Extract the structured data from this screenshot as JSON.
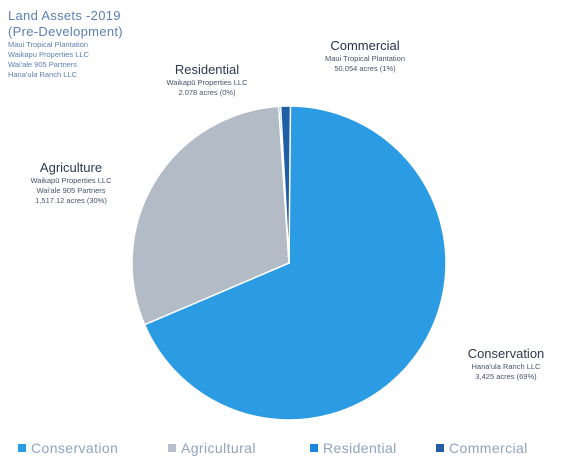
{
  "title_block": {
    "title_line_1": "Land Assets -2019",
    "title_line_2": "(Pre-Development)",
    "owners": [
      "Maui Tropical Plantation",
      "Waikapu Properties LLC",
      "Wai'ale 905 Partners",
      "Hana'ula Ranch LLC"
    ]
  },
  "labels": {
    "commercial": {
      "name": "Commercial",
      "owners": [
        "Maui Tropical Plantation"
      ],
      "acres": "50.054 acres (1%)"
    },
    "residential": {
      "name": "Residential",
      "owners": [
        "Waikapū Properties LLC"
      ],
      "acres": "2.078 acres (0%)"
    },
    "agriculture": {
      "name": "Agriculture",
      "owners": [
        "Waikapū Properties LLC",
        "Wai'ale 905 Partners"
      ],
      "acres": "1,517.12 acres (30%)"
    },
    "conservation": {
      "name": "Conservation",
      "owners": [
        "Hana'ula Ranch LLC"
      ],
      "acres": "3,425 acres (69%)"
    }
  },
  "legend": [
    {
      "label": "Conservation",
      "color": "#2b9be3"
    },
    {
      "label": "Agricultural",
      "color": "#b8bfca"
    },
    {
      "label": "Residential",
      "color": "#1a86d8"
    },
    {
      "label": "Commercial",
      "color": "#1f5fa5"
    }
  ],
  "chart_data": {
    "type": "pie",
    "categories": [
      "Conservation",
      "Agriculture",
      "Residential",
      "Commercial"
    ],
    "values": [
      3425,
      1517.12,
      2.078,
      50.054
    ],
    "percent_labels": [
      "69%",
      "30%",
      "0%",
      "1%"
    ],
    "colors": [
      "#2b9be3",
      "#b3bbc6",
      "#1a86d8",
      "#1f5fa5"
    ],
    "legend": [
      "Conservation",
      "Agricultural",
      "Residential",
      "Commercial"
    ],
    "legend_position": "bottom"
  }
}
